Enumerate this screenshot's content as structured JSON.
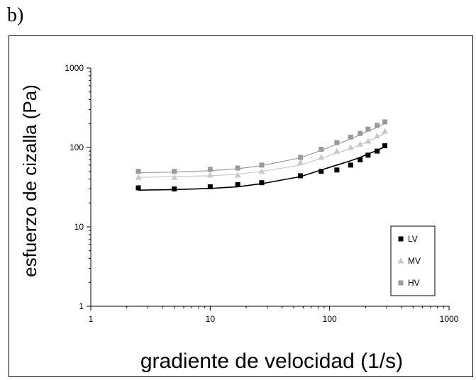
{
  "panel_label": "b)",
  "chart_data": {
    "type": "scatter",
    "title": "",
    "xlabel": "gradiente de velocidad (1/s)",
    "ylabel": "esfuerzo de cizalla (Pa)",
    "xscale": "log",
    "yscale": "log",
    "xlim": [
      1,
      1000
    ],
    "ylim": [
      1,
      1000
    ],
    "x_ticks": [
      1,
      10,
      100,
      1000
    ],
    "x_tick_labels": [
      "1",
      "10",
      "100",
      "1000"
    ],
    "y_ticks": [
      1,
      10,
      100,
      1000
    ],
    "y_tick_labels": [
      "1",
      "10",
      "100",
      "1000"
    ],
    "grid": false,
    "legend_position": "bottom-right",
    "series": [
      {
        "name": "LV",
        "marker": "square",
        "color": "#000000",
        "x": [
          2.5,
          5,
          10,
          17,
          27,
          57,
          85,
          115,
          150,
          180,
          210,
          250,
          290
        ],
        "y": [
          31,
          30,
          32,
          34,
          36,
          44,
          50,
          52,
          60,
          70,
          80,
          90,
          105
        ],
        "fit_y": [
          29,
          29.5,
          30.5,
          32,
          35,
          43,
          52,
          60,
          68,
          75,
          83,
          92,
          102
        ]
      },
      {
        "name": "MV",
        "marker": "triangle",
        "color": "#c8c8c8",
        "x": [
          2.5,
          5,
          10,
          17,
          27,
          57,
          85,
          115,
          150,
          180,
          210,
          250,
          290
        ],
        "y": [
          42,
          42,
          45,
          45,
          50,
          65,
          75,
          90,
          100,
          110,
          120,
          140,
          160
        ],
        "fit_y": [
          42,
          43,
          44,
          46,
          50,
          60,
          73,
          85,
          97,
          108,
          120,
          135,
          150
        ]
      },
      {
        "name": "HV",
        "marker": "square",
        "color": "#9a9a9a",
        "x": [
          2.5,
          5,
          10,
          17,
          27,
          57,
          85,
          115,
          150,
          180,
          210,
          250,
          290
        ],
        "y": [
          50,
          50,
          53,
          55,
          60,
          75,
          95,
          115,
          135,
          150,
          170,
          190,
          210
        ],
        "fit_y": [
          48,
          49,
          51,
          54,
          59,
          74,
          92,
          110,
          128,
          145,
          160,
          180,
          200
        ]
      }
    ]
  }
}
